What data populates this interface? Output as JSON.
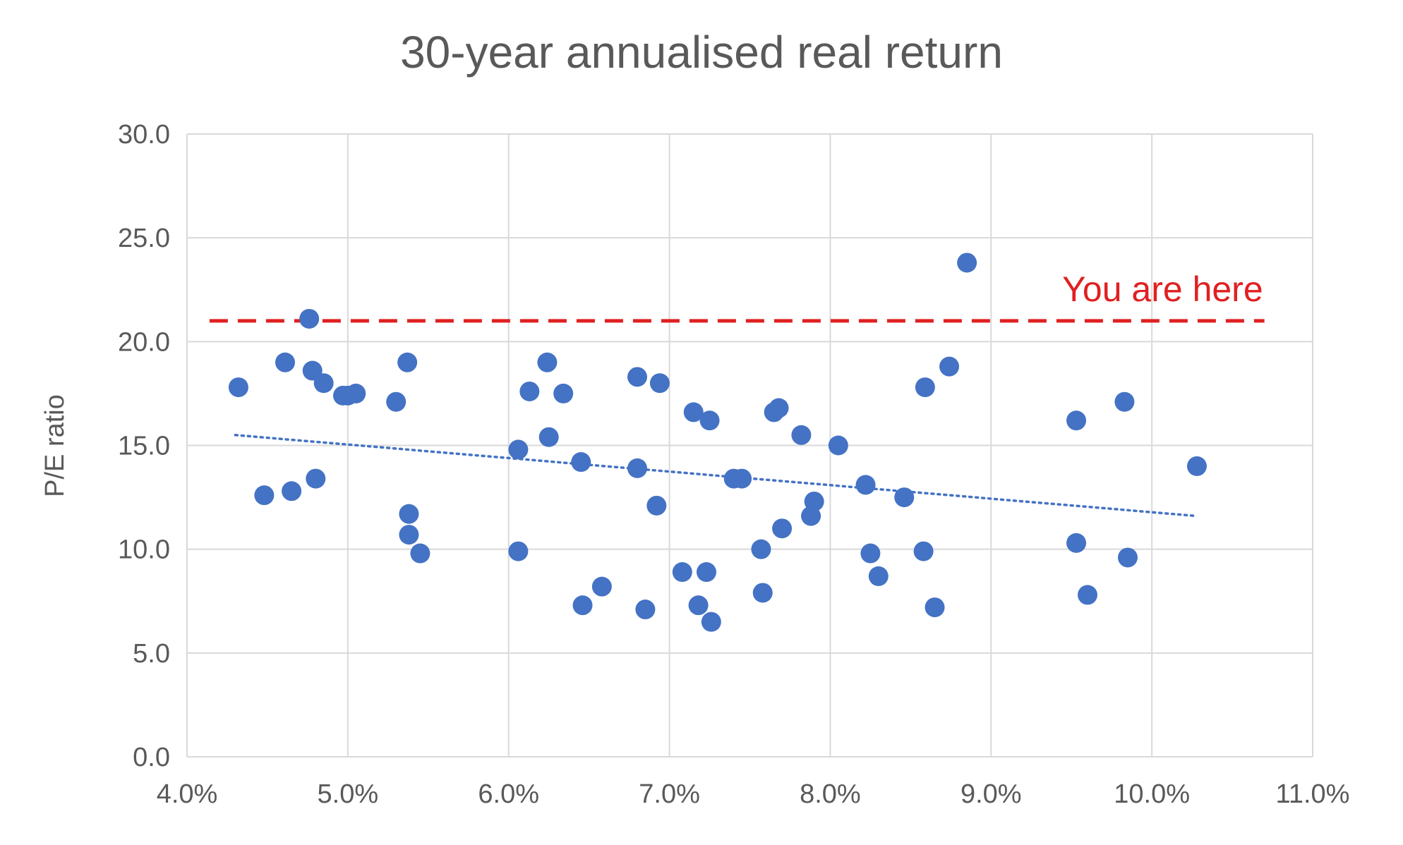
{
  "chart_data": {
    "type": "scatter",
    "title": "30-year annualised real return",
    "xlabel": "",
    "ylabel": "P/E ratio",
    "xlim": [
      0.04,
      0.11
    ],
    "ylim": [
      0,
      30
    ],
    "x_ticks": [
      "4.0%",
      "5.0%",
      "6.0%",
      "7.0%",
      "8.0%",
      "9.0%",
      "10.0%",
      "11.0%"
    ],
    "y_ticks": [
      "0.0",
      "5.0",
      "10.0",
      "15.0",
      "20.0",
      "25.0",
      "30.0"
    ],
    "grid": true,
    "series": [
      {
        "marker_color": "#4472C4",
        "points": [
          [
            0.0432,
            17.8
          ],
          [
            0.0448,
            12.6
          ],
          [
            0.0461,
            19.0
          ],
          [
            0.0465,
            12.8
          ],
          [
            0.0476,
            21.1
          ],
          [
            0.0478,
            18.6
          ],
          [
            0.048,
            13.4
          ],
          [
            0.0485,
            18.0
          ],
          [
            0.0497,
            17.4
          ],
          [
            0.05,
            17.4
          ],
          [
            0.0505,
            17.5
          ],
          [
            0.053,
            17.1
          ],
          [
            0.0537,
            19.0
          ],
          [
            0.0538,
            11.7
          ],
          [
            0.0538,
            10.7
          ],
          [
            0.0545,
            9.8
          ],
          [
            0.0606,
            14.8
          ],
          [
            0.0606,
            9.9
          ],
          [
            0.0613,
            17.6
          ],
          [
            0.0624,
            19.0
          ],
          [
            0.0625,
            15.4
          ],
          [
            0.0634,
            17.5
          ],
          [
            0.0645,
            14.2
          ],
          [
            0.0646,
            7.3
          ],
          [
            0.0658,
            8.2
          ],
          [
            0.068,
            18.3
          ],
          [
            0.068,
            13.9
          ],
          [
            0.0685,
            7.1
          ],
          [
            0.0692,
            12.1
          ],
          [
            0.0694,
            18.0
          ],
          [
            0.0708,
            8.9
          ],
          [
            0.0715,
            16.6
          ],
          [
            0.0718,
            7.3
          ],
          [
            0.0723,
            8.9
          ],
          [
            0.0725,
            16.2
          ],
          [
            0.0726,
            6.5
          ],
          [
            0.074,
            13.4
          ],
          [
            0.0745,
            13.4
          ],
          [
            0.0757,
            10.0
          ],
          [
            0.0758,
            7.9
          ],
          [
            0.0765,
            16.6
          ],
          [
            0.0768,
            16.8
          ],
          [
            0.077,
            11.0
          ],
          [
            0.0782,
            15.5
          ],
          [
            0.0788,
            11.6
          ],
          [
            0.079,
            12.3
          ],
          [
            0.0805,
            15.0
          ],
          [
            0.0822,
            13.1
          ],
          [
            0.0825,
            9.8
          ],
          [
            0.083,
            8.7
          ],
          [
            0.0846,
            12.5
          ],
          [
            0.0858,
            9.9
          ],
          [
            0.0859,
            17.8
          ],
          [
            0.0865,
            7.2
          ],
          [
            0.0874,
            18.8
          ],
          [
            0.0885,
            23.8
          ],
          [
            0.0953,
            16.2
          ],
          [
            0.0953,
            10.3
          ],
          [
            0.096,
            7.8
          ],
          [
            0.0983,
            17.1
          ],
          [
            0.0985,
            9.6
          ],
          [
            0.1028,
            14.0
          ]
        ]
      }
    ],
    "trendline": {
      "style": "dotted",
      "color": "#4472C4",
      "from": [
        0.043,
        15.5
      ],
      "to": [
        0.1028,
        11.6
      ]
    },
    "reference_line": {
      "y": 21.0,
      "x_from": 0.0414,
      "x_to": 0.107,
      "color": "#E02020",
      "style": "dashed",
      "label": "You are here"
    }
  }
}
